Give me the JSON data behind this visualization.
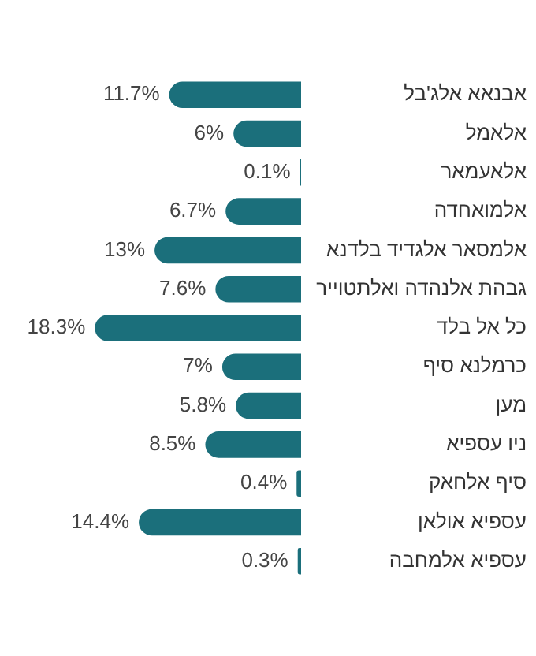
{
  "chart_data": {
    "type": "bar",
    "orientation": "horizontal",
    "categories": [
      "אבנאא אלג'בל",
      "אלאמל",
      "אלאעמאר",
      "אלמואחדה",
      "אלמסאר אלגדיד בלדנא",
      "גבהת אלנהדה ואלתטוייר",
      "כל אל בלד",
      "כרמלנא סיף",
      "מען",
      "ניו עספיא",
      "סיף אלחאק",
      "עספיא אולאן",
      "עספיא אלמחבה"
    ],
    "values": [
      11.7,
      6,
      0.1,
      6.7,
      13,
      7.6,
      18.3,
      7,
      5.8,
      8.5,
      0.4,
      14.4,
      0.3
    ],
    "value_labels": [
      "11.7%",
      "6%",
      "0.1%",
      "6.7%",
      "13%",
      "7.6%",
      "18.3%",
      "7%",
      "5.8%",
      "8.5%",
      "0.4%",
      "14.4%",
      "0.3%"
    ],
    "color": "#1b6f7b",
    "legend": false,
    "tick_labels": "y"
  }
}
